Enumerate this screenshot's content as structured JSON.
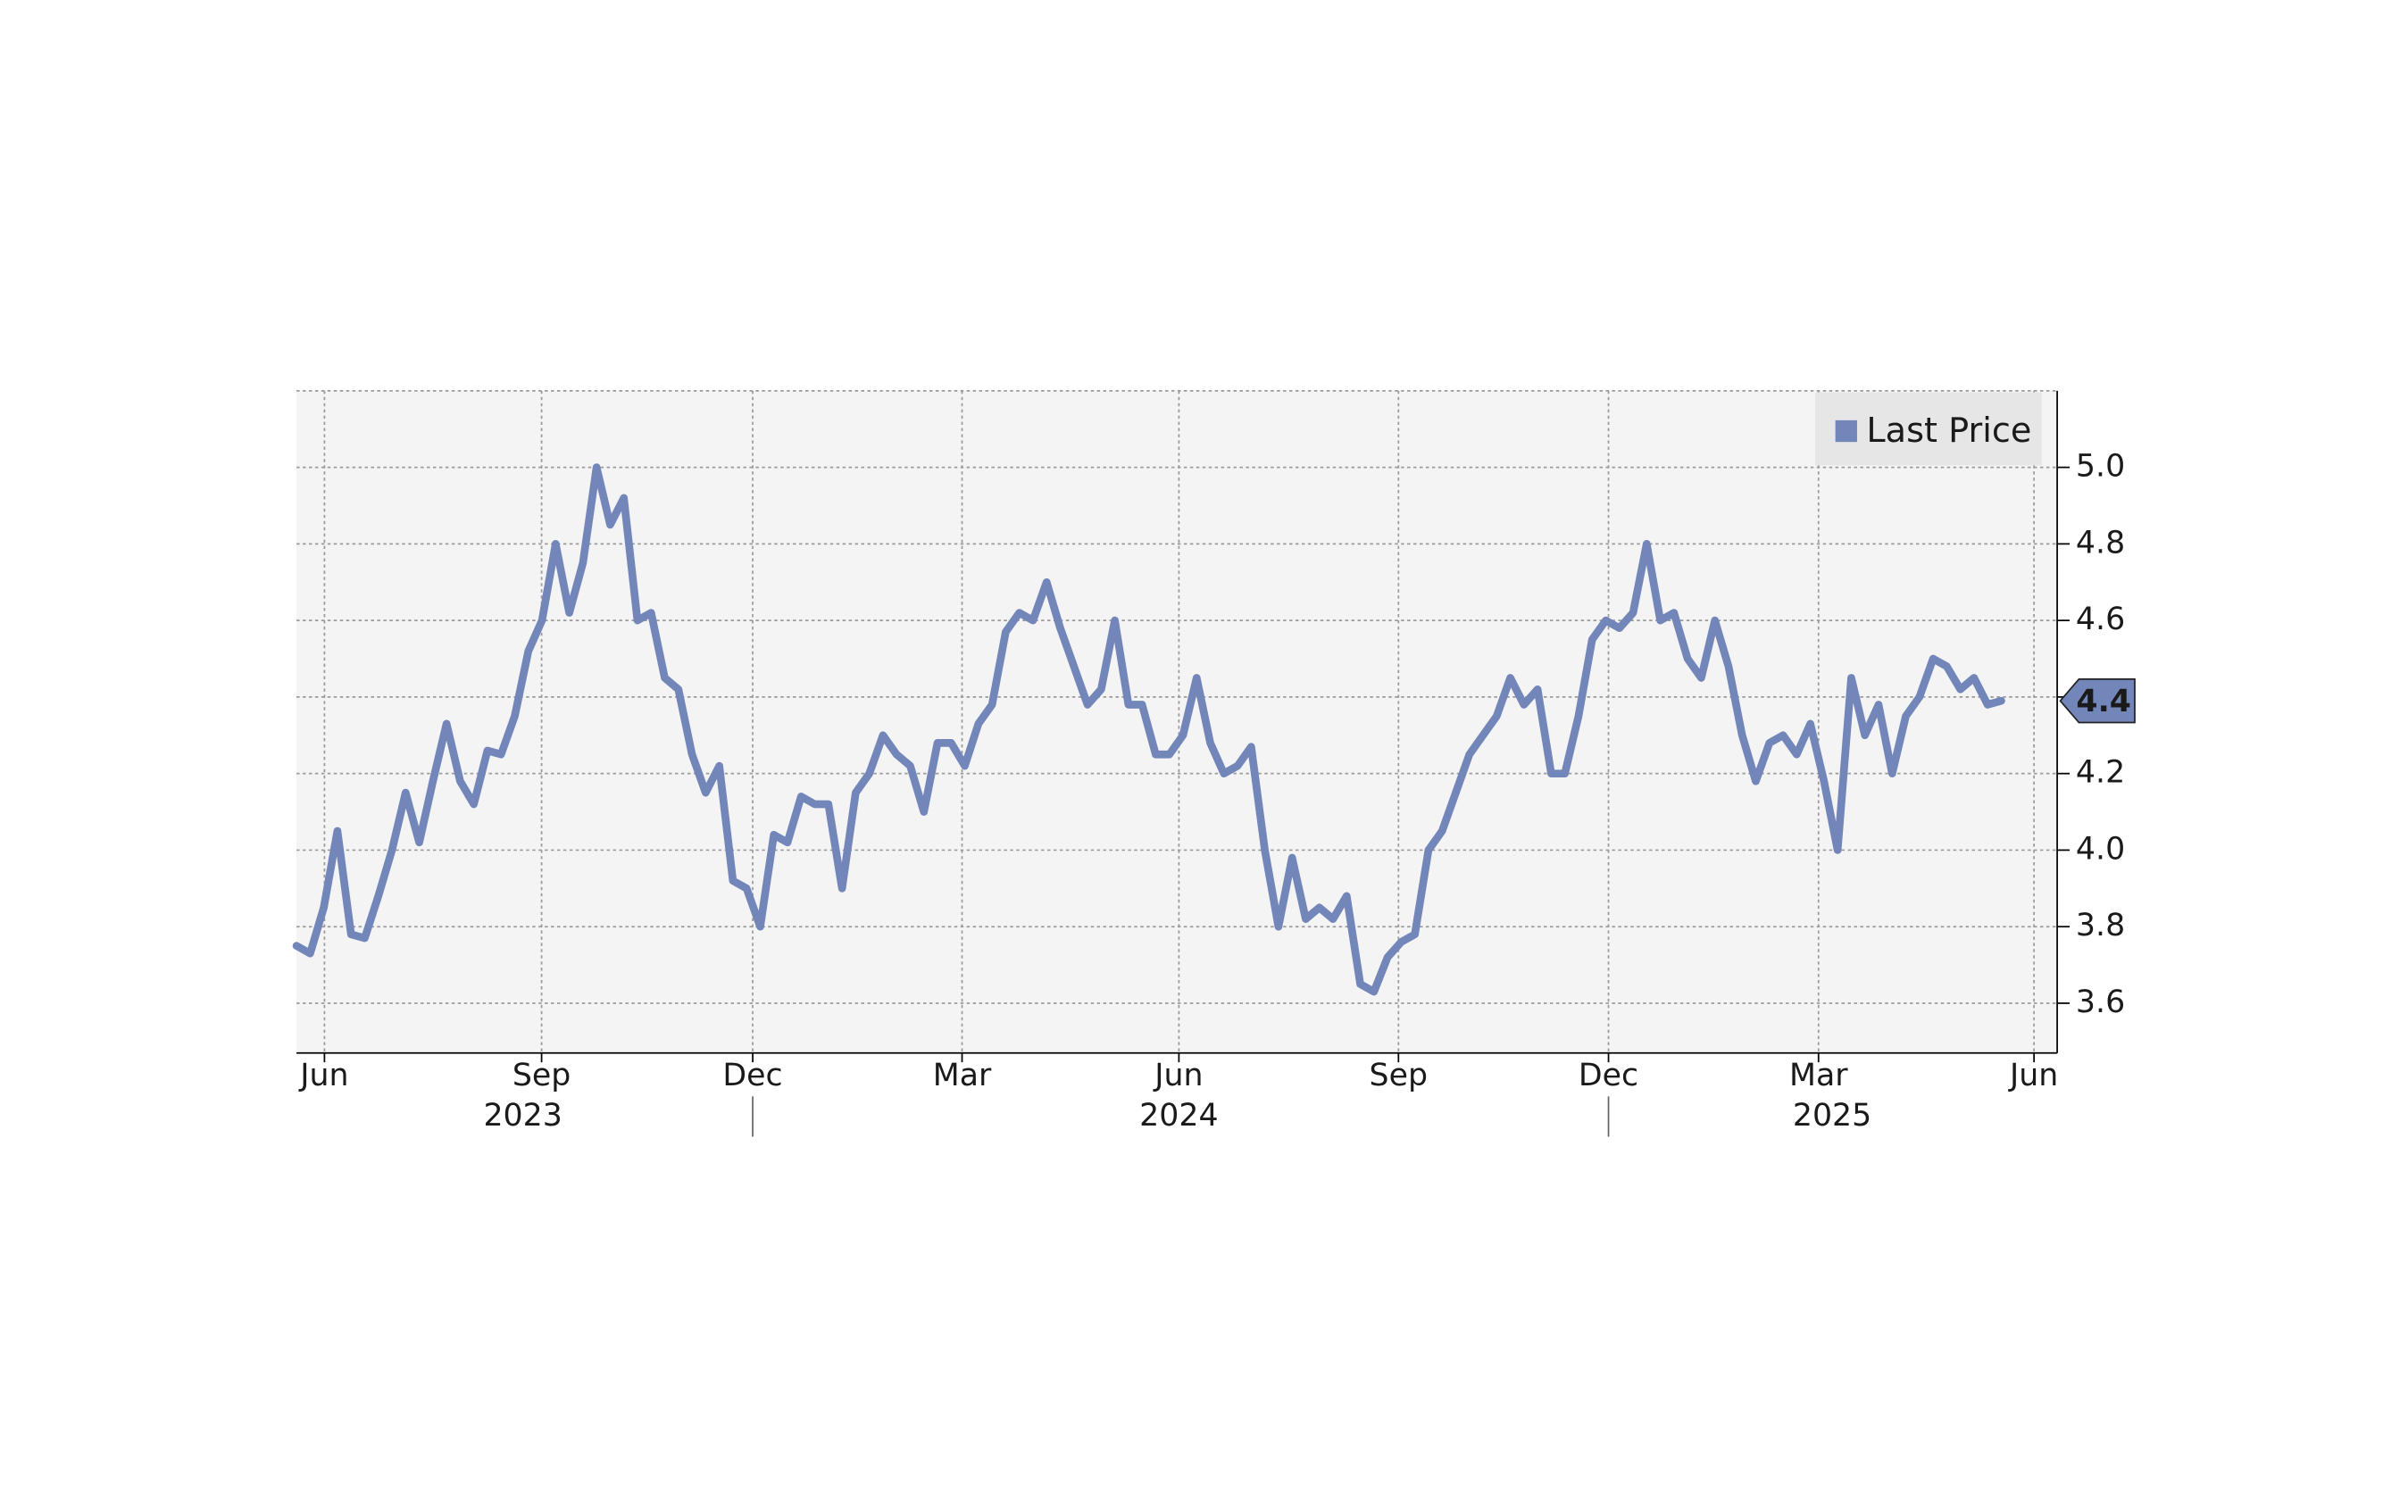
{
  "chart_data": {
    "type": "line",
    "series": [
      {
        "name": "Last Price",
        "color": "#7386b9",
        "values": [
          3.75,
          3.73,
          3.85,
          4.05,
          3.78,
          3.77,
          3.88,
          4.0,
          4.15,
          4.02,
          4.18,
          4.33,
          4.18,
          4.12,
          4.26,
          4.25,
          4.35,
          4.52,
          4.6,
          4.8,
          4.62,
          4.75,
          5.0,
          4.85,
          4.92,
          4.6,
          4.62,
          4.45,
          4.42,
          4.25,
          4.15,
          4.22,
          3.92,
          3.9,
          3.8,
          4.04,
          4.02,
          4.14,
          4.12,
          4.12,
          3.9,
          4.15,
          4.2,
          4.3,
          4.25,
          4.22,
          4.1,
          4.28,
          4.28,
          4.22,
          4.33,
          4.38,
          4.57,
          4.62,
          4.6,
          4.7,
          4.58,
          4.48,
          4.38,
          4.42,
          4.6,
          4.38,
          4.38,
          4.25,
          4.25,
          4.3,
          4.45,
          4.28,
          4.2,
          4.22,
          4.27,
          4.0,
          3.8,
          3.98,
          3.82,
          3.85,
          3.82,
          3.88,
          3.65,
          3.63,
          3.72,
          3.76,
          3.78,
          4.0,
          4.05,
          4.15,
          4.25,
          4.3,
          4.35,
          4.45,
          4.38,
          4.42,
          4.2,
          4.2,
          4.35,
          4.55,
          4.6,
          4.58,
          4.62,
          4.8,
          4.6,
          4.62,
          4.5,
          4.45,
          4.6,
          4.48,
          4.3,
          4.18,
          4.28,
          4.3,
          4.25,
          4.33,
          4.18,
          4.0,
          4.45,
          4.3,
          4.38,
          4.2,
          4.35,
          4.4,
          4.5,
          4.48,
          4.42,
          4.45,
          4.38,
          4.39
        ]
      }
    ],
    "xlim": [
      0,
      129.1
    ],
    "xticks": [
      {
        "value": 2.05,
        "label": "Jun"
      },
      {
        "value": 17.97,
        "label": "Sep"
      },
      {
        "value": 33.45,
        "label": "Dec"
      },
      {
        "value": 48.8,
        "label": "Mar"
      },
      {
        "value": 64.7,
        "label": "Jun"
      },
      {
        "value": 80.8,
        "label": "Sep"
      },
      {
        "value": 96.2,
        "label": "Dec"
      },
      {
        "value": 111.6,
        "label": "Mar"
      },
      {
        "value": 127.4,
        "label": "Jun"
      }
    ],
    "year_labels": [
      {
        "value": 16.6,
        "label": "2023"
      },
      {
        "value": 64.7,
        "label": "2024"
      },
      {
        "value": 112.6,
        "label": "2025"
      }
    ],
    "year_separators": [
      33.45,
      96.2
    ],
    "ylim": [
      3.47,
      5.2
    ],
    "yticks": [
      3.6,
      3.8,
      {
        "value": 4,
        "label": "4.0"
      },
      4.2,
      4.4,
      4.6,
      4.8,
      {
        "value": 5,
        "label": "5.0"
      }
    ],
    "last_price_label": {
      "value": 4.39,
      "label": "4.4"
    },
    "grid": true,
    "legend": "upper right"
  }
}
